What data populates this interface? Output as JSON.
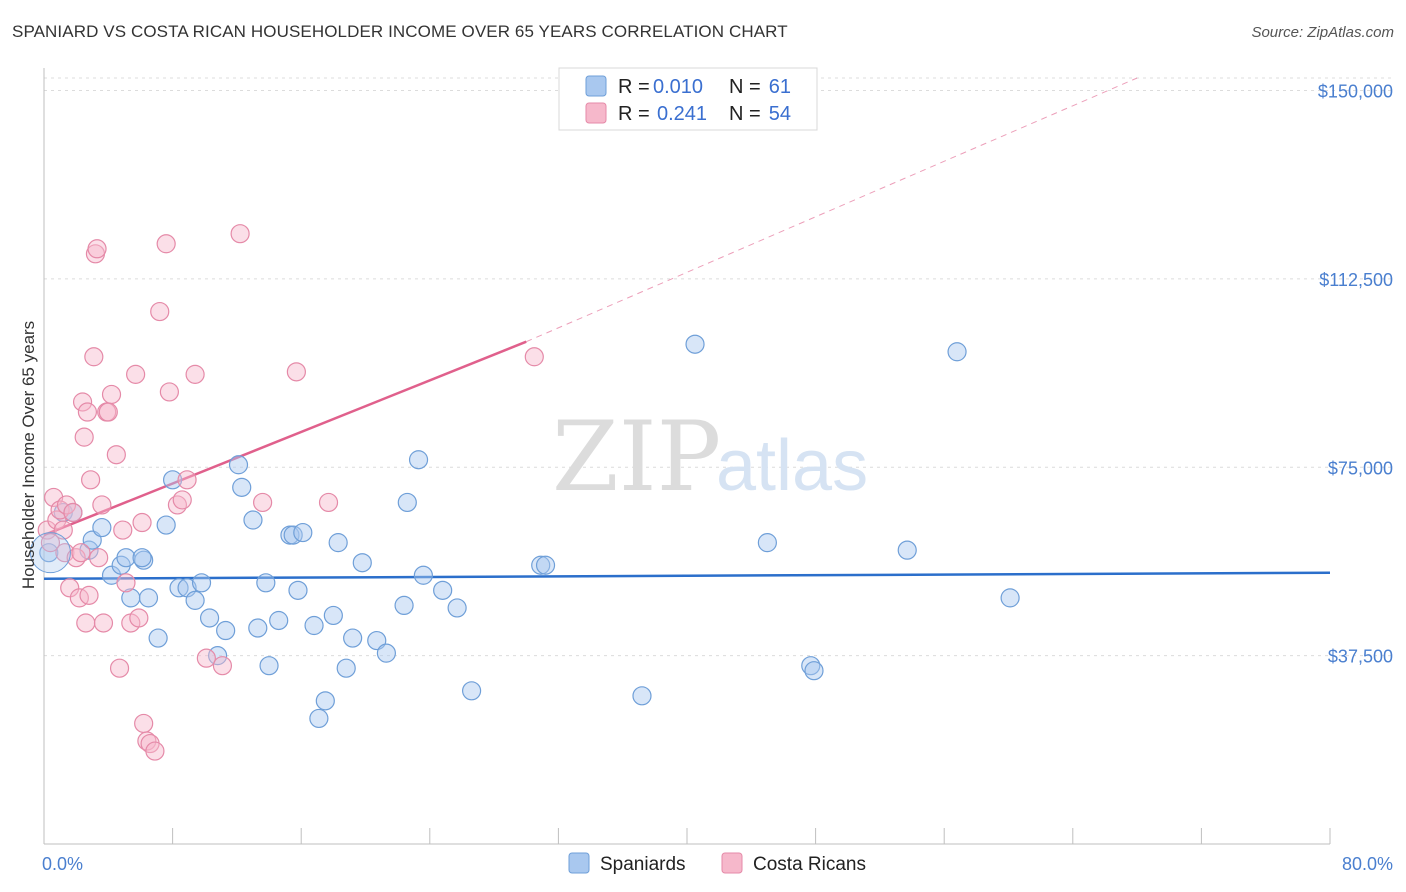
{
  "title": "SPANIARD VS COSTA RICAN HOUSEHOLDER INCOME OVER 65 YEARS CORRELATION CHART",
  "source": "Source: ZipAtlas.com",
  "watermark": {
    "zip": "ZIP",
    "atlas": "atlas"
  },
  "legend": {
    "series": [
      {
        "r_label": "R =",
        "r_value": "0.010",
        "n_label": "N =",
        "n_value": "61"
      },
      {
        "r_label": "R =",
        "r_value": "0.241",
        "n_label": "N =",
        "n_value": "54"
      }
    ]
  },
  "bottom_legend": [
    "Spaniards",
    "Costa Ricans"
  ],
  "colors": {
    "spaniards_fill": "#a9c8ef",
    "spaniards_stroke": "#6f9fd8",
    "spaniards_line": "#2b6fcb",
    "costa_fill": "#f6b8cb",
    "costa_stroke": "#e58aa8",
    "costa_line": "#e0608c",
    "tick_text": "#4a7fcf"
  },
  "chart_data": {
    "type": "scatter",
    "title": "SPANIARD VS COSTA RICAN HOUSEHOLDER INCOME OVER 65 YEARS CORRELATION CHART",
    "xlabel": "",
    "ylabel": "Householder Income Over 65 years",
    "xlim": [
      0,
      80
    ],
    "ylim": [
      0,
      152500
    ],
    "x_tick_labels": [
      "0.0%",
      "80.0%"
    ],
    "y_ticks": [
      37500,
      75000,
      112500,
      150000
    ],
    "y_tick_labels": [
      "$37,500",
      "$75,000",
      "$112,500",
      "$150,000"
    ],
    "grid": true,
    "series": [
      {
        "name": "Spaniards",
        "points": [
          [
            0.3,
            58000
          ],
          [
            1.2,
            66000
          ],
          [
            1.8,
            66000
          ],
          [
            2.8,
            58500
          ],
          [
            3.0,
            60500
          ],
          [
            3.6,
            63000
          ],
          [
            4.2,
            53500
          ],
          [
            4.8,
            55500
          ],
          [
            5.1,
            57000
          ],
          [
            5.4,
            49000
          ],
          [
            6.2,
            56500
          ],
          [
            6.5,
            49000
          ],
          [
            7.1,
            41000
          ],
          [
            7.6,
            63500
          ],
          [
            8.0,
            72500
          ],
          [
            8.4,
            51000
          ],
          [
            8.9,
            51000
          ],
          [
            9.4,
            48500
          ],
          [
            9.8,
            52000
          ],
          [
            10.3,
            45000
          ],
          [
            10.8,
            37500
          ],
          [
            11.3,
            42500
          ],
          [
            12.1,
            75500
          ],
          [
            12.3,
            71000
          ],
          [
            13.0,
            64500
          ],
          [
            13.3,
            43000
          ],
          [
            13.8,
            52000
          ],
          [
            14.0,
            35500
          ],
          [
            14.6,
            44500
          ],
          [
            15.3,
            61500
          ],
          [
            15.5,
            61500
          ],
          [
            15.8,
            50500
          ],
          [
            16.1,
            62000
          ],
          [
            16.8,
            43500
          ],
          [
            17.1,
            25000
          ],
          [
            17.5,
            28500
          ],
          [
            18.0,
            45500
          ],
          [
            18.3,
            60000
          ],
          [
            18.8,
            35000
          ],
          [
            19.2,
            41000
          ],
          [
            19.8,
            56000
          ],
          [
            20.7,
            40500
          ],
          [
            21.3,
            38000
          ],
          [
            22.4,
            47500
          ],
          [
            22.6,
            68000
          ],
          [
            23.3,
            76500
          ],
          [
            23.6,
            53500
          ],
          [
            24.8,
            50500
          ],
          [
            25.7,
            47000
          ],
          [
            26.6,
            30500
          ],
          [
            30.9,
            55500
          ],
          [
            31.2,
            55500
          ],
          [
            37.2,
            29500
          ],
          [
            40.5,
            99500
          ],
          [
            45.0,
            60000
          ],
          [
            47.7,
            35500
          ],
          [
            47.9,
            34500
          ],
          [
            53.7,
            58500
          ],
          [
            56.8,
            98000
          ],
          [
            60.1,
            49000
          ],
          [
            6.1,
            57000
          ]
        ]
      },
      {
        "name": "Costa Ricans",
        "points": [
          [
            0.2,
            62500
          ],
          [
            0.4,
            60000
          ],
          [
            0.6,
            69000
          ],
          [
            0.8,
            64500
          ],
          [
            1.0,
            66500
          ],
          [
            1.2,
            62500
          ],
          [
            1.3,
            58000
          ],
          [
            1.4,
            67500
          ],
          [
            1.6,
            51000
          ],
          [
            1.8,
            66000
          ],
          [
            2.0,
            57000
          ],
          [
            2.2,
            49000
          ],
          [
            2.3,
            58000
          ],
          [
            2.4,
            88000
          ],
          [
            2.5,
            81000
          ],
          [
            2.6,
            44000
          ],
          [
            2.7,
            86000
          ],
          [
            2.8,
            49500
          ],
          [
            2.9,
            72500
          ],
          [
            3.1,
            97000
          ],
          [
            3.2,
            117500
          ],
          [
            3.3,
            118500
          ],
          [
            3.4,
            57000
          ],
          [
            3.6,
            67500
          ],
          [
            3.7,
            44000
          ],
          [
            3.9,
            86000
          ],
          [
            4.0,
            86000
          ],
          [
            4.2,
            89500
          ],
          [
            4.5,
            77500
          ],
          [
            4.7,
            35000
          ],
          [
            4.9,
            62500
          ],
          [
            5.1,
            52000
          ],
          [
            5.4,
            44000
          ],
          [
            5.7,
            93500
          ],
          [
            5.9,
            45000
          ],
          [
            6.1,
            64000
          ],
          [
            6.2,
            24000
          ],
          [
            6.4,
            20500
          ],
          [
            6.6,
            20000
          ],
          [
            6.9,
            18500
          ],
          [
            7.2,
            106000
          ],
          [
            7.6,
            119500
          ],
          [
            7.8,
            90000
          ],
          [
            8.3,
            67500
          ],
          [
            8.6,
            68500
          ],
          [
            8.9,
            72500
          ],
          [
            9.4,
            93500
          ],
          [
            10.1,
            37000
          ],
          [
            11.1,
            35500
          ],
          [
            12.2,
            121500
          ],
          [
            13.6,
            68000
          ],
          [
            15.7,
            94000
          ],
          [
            17.7,
            68000
          ],
          [
            30.5,
            97000
          ]
        ]
      }
    ],
    "trend_lines": [
      {
        "series": "Spaniards",
        "x": [
          0,
          80
        ],
        "y": [
          52800,
          54000
        ],
        "style": "solid"
      },
      {
        "series": "Costa Ricans",
        "x": [
          0,
          30
        ],
        "y": [
          61500,
          100000
        ],
        "style": "solid"
      },
      {
        "series": "Costa Ricans",
        "x": [
          30,
          68
        ],
        "y": [
          100000,
          152500
        ],
        "style": "dashed"
      }
    ]
  }
}
